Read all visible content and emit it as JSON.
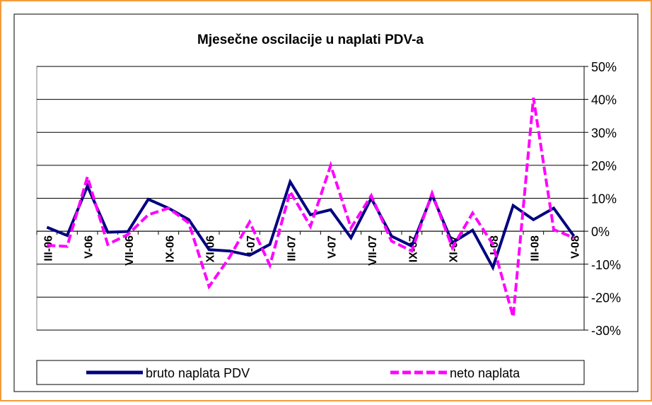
{
  "chart_data": {
    "type": "line",
    "title": "Mjesečne oscilacije u naplati PDV-a",
    "categories": [
      "III-06",
      null,
      "V-06",
      null,
      "VII-06",
      null,
      "IX-06",
      null,
      "XI-06",
      null,
      "I-07",
      null,
      "III-07",
      null,
      "V-07",
      null,
      "VII-07",
      null,
      "IX-07",
      null,
      "XI-07",
      null,
      "I-08",
      null,
      "III-08",
      null,
      "V-08"
    ],
    "series": [
      {
        "name": "bruto naplata PDV",
        "color": "#000080",
        "dashed": false,
        "values": [
          1.2,
          -1.3,
          13.7,
          -0.3,
          -0.1,
          9.7,
          7,
          3.5,
          -5.6,
          -6,
          -7.3,
          -4,
          15,
          5,
          6.5,
          -2,
          10,
          -1.5,
          -4.5,
          11,
          -3.5,
          0.3,
          -11,
          7.8,
          3.5,
          7,
          -1.5
        ]
      },
      {
        "name": "neto naplata",
        "color": "#ff00ff",
        "dashed": true,
        "values": [
          -4.3,
          -4.6,
          16.5,
          -4,
          -1,
          5,
          7,
          2.5,
          -16.8,
          -8,
          2.8,
          -10.3,
          12,
          1.5,
          20,
          1,
          10.8,
          -3,
          -6,
          11.5,
          -5,
          5.5,
          -4,
          -26,
          40.5,
          0.5,
          -2
        ]
      }
    ],
    "ylim": [
      -30,
      50
    ],
    "yticks": [
      {
        "value": -30,
        "label": "-30%"
      },
      {
        "value": -20,
        "label": "-20%"
      },
      {
        "value": -10,
        "label": "-10%"
      },
      {
        "value": 0,
        "label": "0%"
      },
      {
        "value": 10,
        "label": "10%"
      },
      {
        "value": 20,
        "label": "20%"
      },
      {
        "value": 30,
        "label": "30%"
      },
      {
        "value": 40,
        "label": "40%"
      },
      {
        "value": 50,
        "label": "50%"
      }
    ],
    "grid": true,
    "legend": "bottom"
  }
}
